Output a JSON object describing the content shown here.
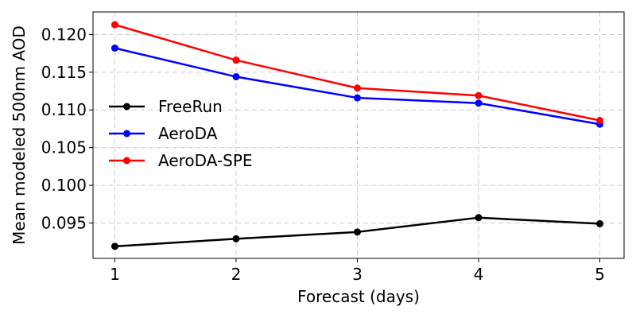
{
  "chart_data": {
    "type": "line",
    "title": "",
    "xlabel": "Forecast (days)",
    "ylabel": "Mean modeled 500nm AOD",
    "x": [
      1,
      2,
      3,
      4,
      5
    ],
    "x_ticks": [
      "1",
      "2",
      "3",
      "4",
      "5"
    ],
    "y_ticks": [
      "0.095",
      "0.100",
      "0.105",
      "0.110",
      "0.115",
      "0.120"
    ],
    "xlim": [
      0.82,
      5.2
    ],
    "ylim": [
      0.0903,
      0.123
    ],
    "grid": true,
    "legend_position": "center-left",
    "series": [
      {
        "name": "FreeRun",
        "color": "#000000",
        "values": [
          0.0919,
          0.0929,
          0.0938,
          0.0957,
          0.0949
        ]
      },
      {
        "name": "AeroDA",
        "color": "#0000ff",
        "values": [
          0.1182,
          0.1144,
          0.1116,
          0.1109,
          0.1081
        ]
      },
      {
        "name": "AeroDA-SPE",
        "color": "#ff0000",
        "values": [
          0.1213,
          0.1166,
          0.1129,
          0.1119,
          0.1086
        ]
      }
    ]
  }
}
